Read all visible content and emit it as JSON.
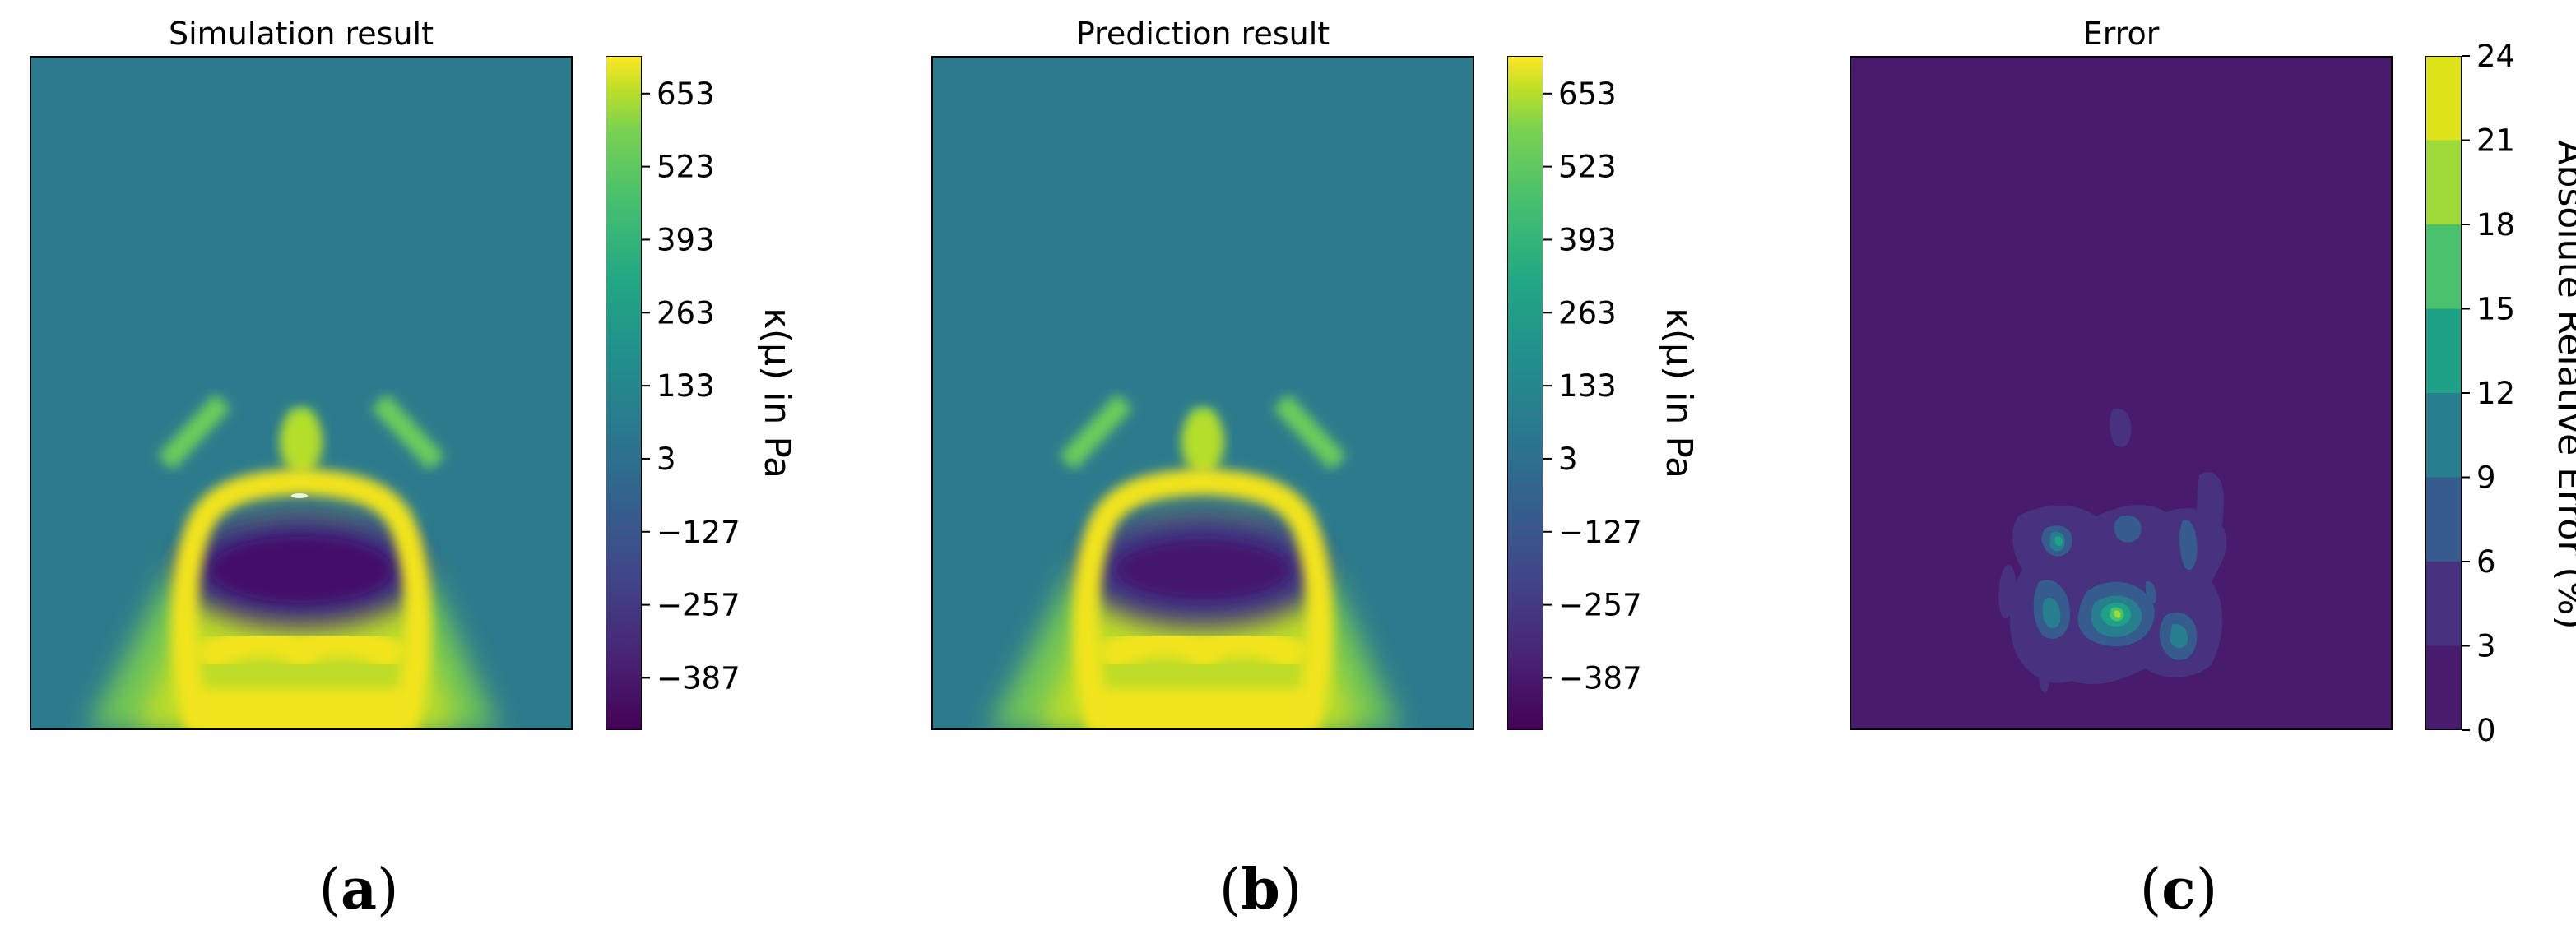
{
  "chart_data": [
    {
      "type": "heatmap",
      "title": "Simulation result",
      "caption": "a",
      "colorbar": {
        "label": "κ(μ) in Pa",
        "ticks": [
          "653",
          "523",
          "393",
          "263",
          "133",
          "3",
          "−127",
          "−257",
          "−387"
        ],
        "tick_values": [
          653,
          523,
          393,
          263,
          133,
          3,
          -127,
          -257,
          -387
        ],
        "range": [
          -480,
          720
        ],
        "colormap": "viridis",
        "continuous": true
      },
      "background_value": 80,
      "axes_visible": false
    },
    {
      "type": "heatmap",
      "title": "Prediction result",
      "caption": "b",
      "colorbar": {
        "label": "κ(μ) in Pa",
        "ticks": [
          "653",
          "523",
          "393",
          "263",
          "133",
          "3",
          "−127",
          "−257",
          "−387"
        ],
        "tick_values": [
          653,
          523,
          393,
          263,
          133,
          3,
          -127,
          -257,
          -387
        ],
        "range": [
          -480,
          720
        ],
        "colormap": "viridis",
        "continuous": true
      },
      "background_value": 80,
      "axes_visible": false
    },
    {
      "type": "heatmap",
      "title": "Error",
      "caption": "c",
      "colorbar": {
        "label": "Absolute Relative Error (%)",
        "ticks": [
          "24",
          "21",
          "18",
          "15",
          "12",
          "9",
          "6",
          "3",
          "0"
        ],
        "tick_values": [
          24,
          21,
          18,
          15,
          12,
          9,
          6,
          3,
          0
        ],
        "range": [
          0,
          24
        ],
        "colormap": "viridis",
        "continuous": false,
        "levels": [
          0,
          3,
          6,
          9,
          12,
          15,
          18,
          21,
          24
        ],
        "level_colors": [
          "#481b6d",
          "#46327e",
          "#365c8d",
          "#277f8e",
          "#1fa187",
          "#4ac16d",
          "#a0da39",
          "#dde318"
        ]
      },
      "background_value": 1.5,
      "axes_visible": false
    }
  ]
}
